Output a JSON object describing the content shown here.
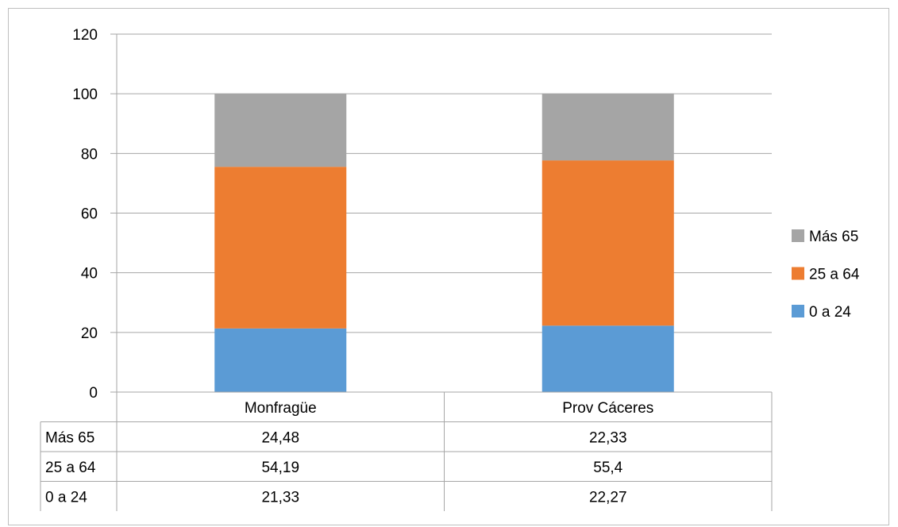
{
  "chart_data": {
    "type": "bar",
    "stacked": true,
    "categories": [
      "Monfragüe",
      "Prov Cáceres"
    ],
    "series": [
      {
        "name": "0 a 24",
        "values": [
          21.33,
          22.27
        ],
        "color": "#5b9bd5",
        "labels": [
          "21,33",
          "22,27"
        ]
      },
      {
        "name": "25 a 64",
        "values": [
          54.19,
          55.4
        ],
        "color": "#ed7d31",
        "labels": [
          "54,19",
          "55,4"
        ]
      },
      {
        "name": "Más 65",
        "values": [
          24.48,
          22.33
        ],
        "color": "#a5a5a5",
        "labels": [
          "24,48",
          "22,33"
        ]
      }
    ],
    "ylim": [
      0,
      120
    ],
    "yticks": [
      "0",
      "20",
      "40",
      "60",
      "80",
      "100",
      "120"
    ],
    "grid": true,
    "legend_position": "right",
    "legend_order": [
      "Más 65",
      "25 a 64",
      "0 a 24"
    ],
    "data_table": true,
    "data_table_row_order": [
      "Más 65",
      "25 a 64",
      "0 a 24"
    ],
    "gridline_color": "#a6a6a6"
  }
}
